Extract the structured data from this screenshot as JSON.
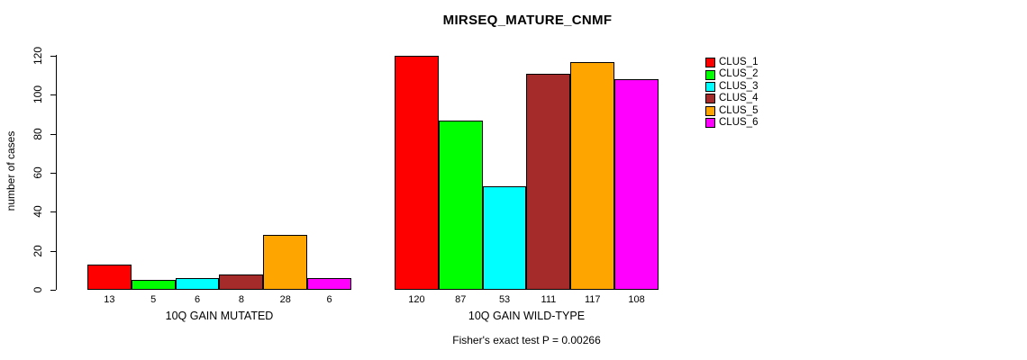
{
  "chart_data": {
    "type": "bar",
    "title": "MIRSEQ_MATURE_CNMF",
    "ylabel": "number of cases",
    "xlabel": "",
    "ylim": [
      0,
      120
    ],
    "yticks": [
      0,
      20,
      40,
      60,
      80,
      100,
      120
    ],
    "grid": false,
    "legend_position": "right",
    "annotation": "Fisher's exact test P = 0.00266",
    "categories": [
      "10Q GAIN MUTATED",
      "10Q GAIN WILD-TYPE"
    ],
    "series": [
      {
        "name": "CLUS_1",
        "color": "#FF0000",
        "values": [
          13,
          120
        ]
      },
      {
        "name": "CLUS_2",
        "color": "#00FF00",
        "values": [
          5,
          87
        ]
      },
      {
        "name": "CLUS_3",
        "color": "#00FFFF",
        "values": [
          6,
          53
        ]
      },
      {
        "name": "CLUS_4",
        "color": "#A52A2A",
        "values": [
          8,
          111
        ]
      },
      {
        "name": "CLUS_5",
        "color": "#FFA500",
        "values": [
          28,
          117
        ]
      },
      {
        "name": "CLUS_6",
        "color": "#FF00FF",
        "values": [
          6,
          108
        ]
      }
    ],
    "bar_value_labels_shown": true
  }
}
